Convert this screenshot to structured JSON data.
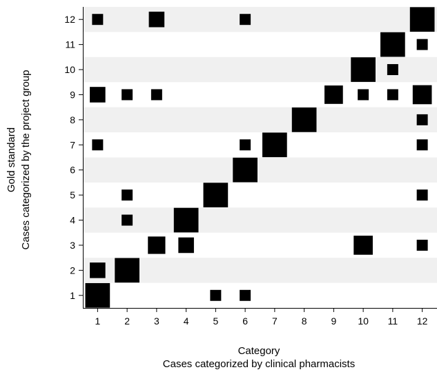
{
  "chart_data": {
    "type": "matrix",
    "xlabel": "Category",
    "xlabel_sub": "Cases categorized by clinical pharmacists",
    "ylabel": "Gold standard",
    "ylabel_sub": "Cases categorized by the project group",
    "x_ticks": [
      "1",
      "2",
      "3",
      "4",
      "5",
      "6",
      "7",
      "8",
      "9",
      "10",
      "11",
      "12"
    ],
    "y_ticks": [
      "1",
      "2",
      "3",
      "4",
      "5",
      "6",
      "7",
      "8",
      "9",
      "10",
      "11",
      "12"
    ],
    "row_band_color": "#f0f0f0",
    "mark_color": "#000000",
    "cells": [
      {
        "x": 1,
        "y": 1,
        "size": 5
      },
      {
        "x": 5,
        "y": 1,
        "size": 1
      },
      {
        "x": 6,
        "y": 1,
        "size": 1
      },
      {
        "x": 1,
        "y": 2,
        "size": 2
      },
      {
        "x": 2,
        "y": 2,
        "size": 5
      },
      {
        "x": 3,
        "y": 3,
        "size": 2.5
      },
      {
        "x": 4,
        "y": 3,
        "size": 2
      },
      {
        "x": 10,
        "y": 3,
        "size": 3
      },
      {
        "x": 12,
        "y": 3,
        "size": 1
      },
      {
        "x": 2,
        "y": 4,
        "size": 1
      },
      {
        "x": 4,
        "y": 4,
        "size": 5
      },
      {
        "x": 2,
        "y": 5,
        "size": 1
      },
      {
        "x": 5,
        "y": 5,
        "size": 5
      },
      {
        "x": 12,
        "y": 5,
        "size": 1
      },
      {
        "x": 6,
        "y": 6,
        "size": 5
      },
      {
        "x": 1,
        "y": 7,
        "size": 1
      },
      {
        "x": 6,
        "y": 7,
        "size": 1
      },
      {
        "x": 7,
        "y": 7,
        "size": 5
      },
      {
        "x": 12,
        "y": 7,
        "size": 1
      },
      {
        "x": 8,
        "y": 8,
        "size": 5
      },
      {
        "x": 12,
        "y": 8,
        "size": 1
      },
      {
        "x": 1,
        "y": 9,
        "size": 2
      },
      {
        "x": 2,
        "y": 9,
        "size": 1
      },
      {
        "x": 3,
        "y": 9,
        "size": 1
      },
      {
        "x": 9,
        "y": 9,
        "size": 2.8
      },
      {
        "x": 10,
        "y": 9,
        "size": 1
      },
      {
        "x": 11,
        "y": 9,
        "size": 1
      },
      {
        "x": 12,
        "y": 9,
        "size": 3
      },
      {
        "x": 10,
        "y": 10,
        "size": 5
      },
      {
        "x": 11,
        "y": 10,
        "size": 1
      },
      {
        "x": 11,
        "y": 11,
        "size": 5
      },
      {
        "x": 12,
        "y": 11,
        "size": 1
      },
      {
        "x": 1,
        "y": 12,
        "size": 1
      },
      {
        "x": 3,
        "y": 12,
        "size": 2
      },
      {
        "x": 6,
        "y": 12,
        "size": 1
      },
      {
        "x": 12,
        "y": 12,
        "size": 5
      }
    ]
  }
}
